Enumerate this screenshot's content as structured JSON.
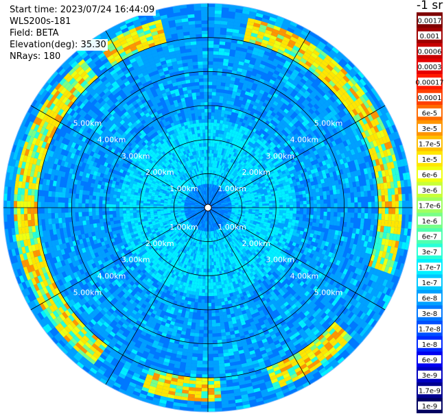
{
  "info": {
    "start_time": "Start time: 2023/07/24 16:44:09",
    "instrument": "WLS200s-181",
    "field": "Field: BETA",
    "elevation": "Elevation(deg): 35.30",
    "nrays": "NRays: 180"
  },
  "colorbar": {
    "title": "-1 sr",
    "entries": [
      {
        "label": "0.0017",
        "color": "#7f0000",
        "text": "#ffffff"
      },
      {
        "label": "0.001",
        "color": "#a00000",
        "text": "#ffffff"
      },
      {
        "label": "0.0006",
        "color": "#c80000",
        "text": "#ffffff"
      },
      {
        "label": "0.0003",
        "color": "#e60000",
        "text": "#ffffff"
      },
      {
        "label": "0.00017",
        "color": "#ff1a00",
        "text": "#ffffff"
      },
      {
        "label": "0.0001",
        "color": "#ff4000",
        "text": "#ffffff"
      },
      {
        "label": "6e-5",
        "color": "#ff6a00",
        "text": "#000000"
      },
      {
        "label": "3e-5",
        "color": "#ff9500",
        "text": "#000000"
      },
      {
        "label": "1.7e-5",
        "color": "#ffbf00",
        "text": "#000000"
      },
      {
        "label": "1e-5",
        "color": "#ffe600",
        "text": "#000000"
      },
      {
        "label": "6e-6",
        "color": "#f0ff10",
        "text": "#000000"
      },
      {
        "label": "3e-6",
        "color": "#c8ff38",
        "text": "#000000"
      },
      {
        "label": "1.7e-6",
        "color": "#a0ff60",
        "text": "#000000"
      },
      {
        "label": "1e-6",
        "color": "#78ff88",
        "text": "#000000"
      },
      {
        "label": "6e-7",
        "color": "#50ffaf",
        "text": "#000000"
      },
      {
        "label": "3e-7",
        "color": "#28ffd7",
        "text": "#000000"
      },
      {
        "label": "1.7e-7",
        "color": "#00f0ff",
        "text": "#000000"
      },
      {
        "label": "1e-7",
        "color": "#00c8ff",
        "text": "#000000"
      },
      {
        "label": "6e-8",
        "color": "#00a0ff",
        "text": "#000000"
      },
      {
        "label": "3e-8",
        "color": "#0078ff",
        "text": "#000000"
      },
      {
        "label": "1.7e-8",
        "color": "#0050ff",
        "text": "#ffffff"
      },
      {
        "label": "1e-8",
        "color": "#0028ff",
        "text": "#ffffff"
      },
      {
        "label": "6e-9",
        "color": "#0000f0",
        "text": "#ffffff"
      },
      {
        "label": "3e-9",
        "color": "#0000c0",
        "text": "#ffffff"
      },
      {
        "label": "1.7e-9",
        "color": "#000090",
        "text": "#ffffff"
      },
      {
        "label": "1e-9",
        "color": "#000060",
        "text": "#ffffff"
      }
    ]
  },
  "chart_data": {
    "type": "heatmap",
    "projection": "polar-ppi",
    "max_range_km": 6,
    "range_rings_km": [
      1,
      2,
      3,
      4,
      5
    ],
    "ring_labels": [
      "1.00km",
      "2.00km",
      "3.00km",
      "4.00km",
      "5.00km"
    ],
    "azimuth_spokes_deg": [
      0,
      30,
      60,
      90,
      120,
      150,
      180,
      210,
      240,
      270,
      300,
      330
    ],
    "dominant_levels": {
      "inner_0_to_0_7km": "3e-8",
      "ring_0_7_to_2_6km": "1.7e-7",
      "outer_2_6_to_6km": "6e-8",
      "enhanced_band_5_to_6km": "1e-5"
    },
    "colors": {
      "background": "#ffffff",
      "grid": "#000000",
      "ring_label": "#ffffff"
    }
  }
}
